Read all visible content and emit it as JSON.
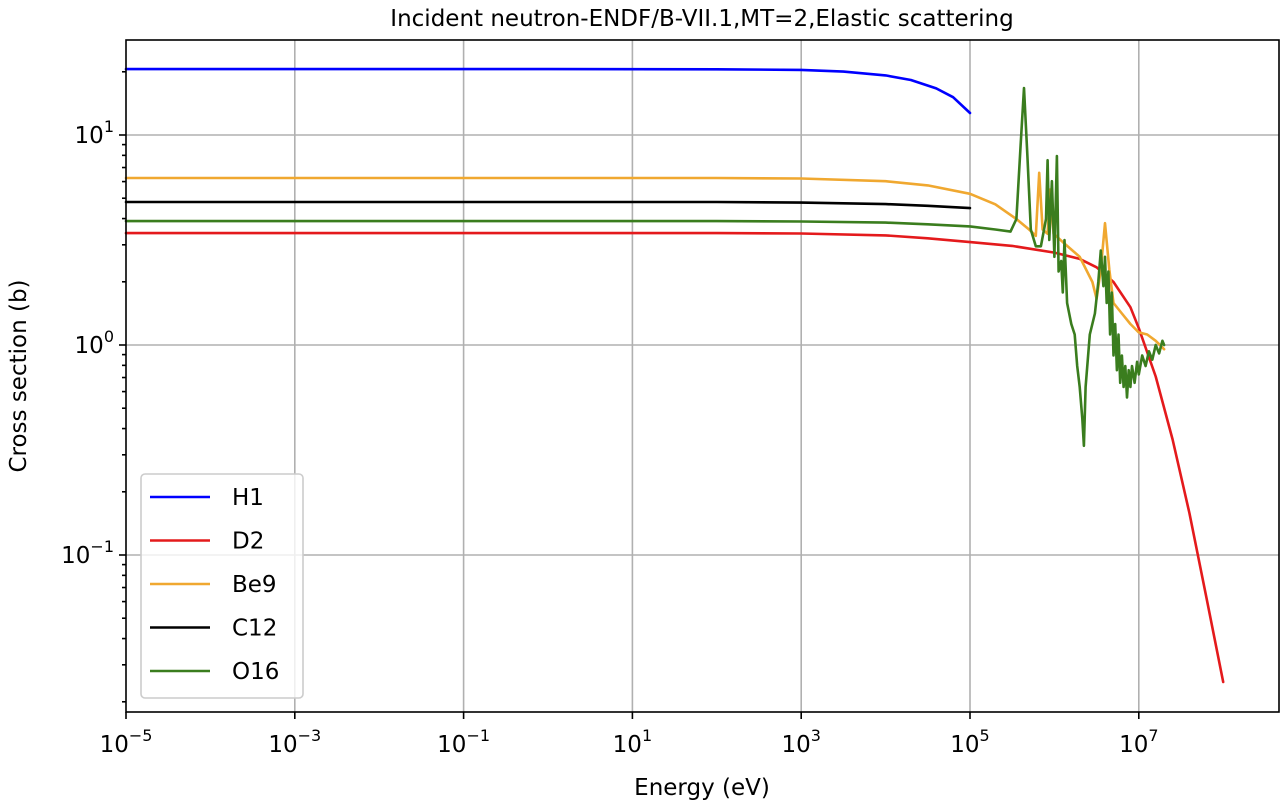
{
  "chart_data": {
    "type": "line",
    "title": "Incident neutron-ENDF/B-VII.1,MT=2,Elastic scattering",
    "xlabel": "Energy (eV)",
    "ylabel": "Cross section (b)",
    "xscale": "log",
    "yscale": "log",
    "xlim": [
      1e-05,
      460000000.0
    ],
    "ylim": [
      0.0195,
      28
    ],
    "grid": true,
    "legend_position": "lower left",
    "x_ticks": [
      {
        "base": "10",
        "exp": "−5",
        "log": -5
      },
      {
        "base": "10",
        "exp": "−3",
        "log": -3
      },
      {
        "base": "10",
        "exp": "−1",
        "log": -1
      },
      {
        "base": "10",
        "exp": "1",
        "log": 1
      },
      {
        "base": "10",
        "exp": "3",
        "log": 3
      },
      {
        "base": "10",
        "exp": "5",
        "log": 5
      },
      {
        "base": "10",
        "exp": "7",
        "log": 7
      }
    ],
    "y_ticks": [
      {
        "base": "10",
        "exp": "1",
        "log": 1
      },
      {
        "base": "10",
        "exp": "0",
        "log": 0
      },
      {
        "base": "10",
        "exp": "−1",
        "log": -1
      }
    ],
    "series": [
      {
        "name": "H1",
        "color": "#0000ff",
        "points_logE_logS": [
          [
            -5,
            1.314
          ],
          [
            0,
            1.314
          ],
          [
            2,
            1.313
          ],
          [
            3,
            1.31
          ],
          [
            3.5,
            1.302
          ],
          [
            4,
            1.284
          ],
          [
            4.3,
            1.262
          ],
          [
            4.6,
            1.222
          ],
          [
            4.8,
            1.18
          ],
          [
            5,
            1.105
          ]
        ]
      },
      {
        "name": "D2",
        "color": "#e41a1c",
        "points_logE_logS": [
          [
            -5,
            0.533
          ],
          [
            2,
            0.533
          ],
          [
            3,
            0.531
          ],
          [
            4,
            0.522
          ],
          [
            4.5,
            0.508
          ],
          [
            5,
            0.49
          ],
          [
            5.5,
            0.472
          ],
          [
            6,
            0.44
          ],
          [
            6.3,
            0.41
          ],
          [
            6.5,
            0.37
          ],
          [
            6.7,
            0.3
          ],
          [
            6.9,
            0.18
          ],
          [
            7,
            0.08
          ],
          [
            7.2,
            -0.15
          ],
          [
            7.4,
            -0.45
          ],
          [
            7.6,
            -0.8
          ],
          [
            7.8,
            -1.2
          ],
          [
            8,
            -1.605
          ]
        ]
      },
      {
        "name": "Be9",
        "color": "#f0a830",
        "points_logE_logS": [
          [
            -5,
            0.795
          ],
          [
            2,
            0.795
          ],
          [
            3,
            0.793
          ],
          [
            4,
            0.78
          ],
          [
            4.5,
            0.76
          ],
          [
            5,
            0.72
          ],
          [
            5.3,
            0.67
          ],
          [
            5.55,
            0.6
          ],
          [
            5.7,
            0.55
          ],
          [
            5.78,
            0.52
          ],
          [
            5.82,
            0.82
          ],
          [
            5.86,
            0.55
          ],
          [
            5.92,
            0.53
          ],
          [
            5.95,
            0.74
          ],
          [
            5.99,
            0.53
          ],
          [
            6.1,
            0.49
          ],
          [
            6.3,
            0.42
          ],
          [
            6.45,
            0.3
          ],
          [
            6.5,
            0.22
          ],
          [
            6.55,
            0.36
          ],
          [
            6.6,
            0.58
          ],
          [
            6.65,
            0.36
          ],
          [
            6.7,
            0.2
          ],
          [
            6.8,
            0.15
          ],
          [
            6.9,
            0.1
          ],
          [
            7,
            0.06
          ],
          [
            7.1,
            0.05
          ],
          [
            7.2,
            0.02
          ],
          [
            7.3,
            -0.02
          ]
        ]
      },
      {
        "name": "C12",
        "color": "#000000",
        "points_logE_logS": [
          [
            -5,
            0.681
          ],
          [
            2,
            0.681
          ],
          [
            3,
            0.678
          ],
          [
            4,
            0.671
          ],
          [
            4.5,
            0.663
          ],
          [
            5,
            0.652
          ]
        ]
      },
      {
        "name": "O16",
        "color": "#3a7d1e",
        "points_logE_logS": [
          [
            -5,
            0.59
          ],
          [
            2,
            0.59
          ],
          [
            3,
            0.588
          ],
          [
            4,
            0.583
          ],
          [
            4.5,
            0.575
          ],
          [
            5,
            0.565
          ],
          [
            5.3,
            0.55
          ],
          [
            5.48,
            0.54
          ],
          [
            5.55,
            0.6
          ],
          [
            5.6,
            0.95
          ],
          [
            5.64,
            1.224
          ],
          [
            5.68,
            0.9
          ],
          [
            5.72,
            0.55
          ],
          [
            5.78,
            0.47
          ],
          [
            5.84,
            0.47
          ],
          [
            5.9,
            0.6
          ],
          [
            5.92,
            0.88
          ],
          [
            5.94,
            0.5
          ],
          [
            5.97,
            0.78
          ],
          [
            6.0,
            0.42
          ],
          [
            6.03,
            0.9
          ],
          [
            6.05,
            0.35
          ],
          [
            6.08,
            0.4
          ],
          [
            6.1,
            0.25
          ],
          [
            6.12,
            0.5
          ],
          [
            6.15,
            0.2
          ],
          [
            6.2,
            0.1
          ],
          [
            6.24,
            0.05
          ],
          [
            6.27,
            -0.1
          ],
          [
            6.3,
            -0.2
          ],
          [
            6.33,
            -0.35
          ],
          [
            6.35,
            -0.48
          ],
          [
            6.37,
            -0.2
          ],
          [
            6.42,
            0.05
          ],
          [
            6.48,
            0.15
          ],
          [
            6.52,
            0.3
          ],
          [
            6.55,
            0.45
          ],
          [
            6.58,
            0.28
          ],
          [
            6.6,
            0.42
          ],
          [
            6.62,
            0.2
          ],
          [
            6.64,
            0.35
          ],
          [
            6.66,
            0.05
          ],
          [
            6.68,
            0.25
          ],
          [
            6.7,
            -0.05
          ],
          [
            6.72,
            0.1
          ],
          [
            6.74,
            -0.12
          ],
          [
            6.76,
            0.05
          ],
          [
            6.78,
            -0.18
          ],
          [
            6.8,
            -0.05
          ],
          [
            6.82,
            -0.2
          ],
          [
            6.84,
            -0.1
          ],
          [
            6.86,
            -0.25
          ],
          [
            6.88,
            -0.12
          ],
          [
            6.9,
            -0.2
          ],
          [
            6.92,
            -0.1
          ],
          [
            6.95,
            -0.18
          ],
          [
            6.98,
            -0.08
          ],
          [
            7.0,
            -0.14
          ],
          [
            7.04,
            -0.05
          ],
          [
            7.08,
            -0.1
          ],
          [
            7.12,
            -0.03
          ],
          [
            7.16,
            -0.07
          ],
          [
            7.2,
            0.0
          ],
          [
            7.24,
            -0.04
          ],
          [
            7.28,
            0.02
          ],
          [
            7.3,
            0.0
          ]
        ]
      }
    ]
  }
}
